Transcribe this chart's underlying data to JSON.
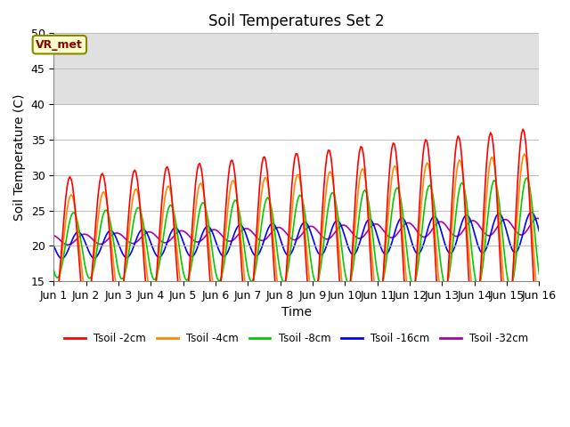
{
  "title": "Soil Temperatures Set 2",
  "xlabel": "Time",
  "ylabel": "Soil Temperature (C)",
  "ylim": [
    15,
    50
  ],
  "xlim": [
    0,
    15
  ],
  "xtick_labels": [
    "Jun 1",
    "Jun 2",
    "Jun 3",
    "Jun 4",
    "Jun 5",
    "Jun 6",
    "Jun 7",
    "Jun 8",
    "Jun 9",
    "Jun 10",
    "Jun 11",
    "Jun 12",
    "Jun 13",
    "Jun 14",
    "Jun 15",
    "Jun 16"
  ],
  "xtick_positions": [
    0,
    1,
    2,
    3,
    4,
    5,
    6,
    7,
    8,
    9,
    10,
    11,
    12,
    13,
    14,
    15
  ],
  "ytick_positions": [
    15,
    20,
    25,
    30,
    35,
    40,
    45,
    50
  ],
  "series_colors": [
    "#ff0000",
    "#ff8800",
    "#00cc00",
    "#0000ff",
    "#aa00aa"
  ],
  "series_labels": [
    "Tsoil -2cm",
    "Tsoil -4cm",
    "Tsoil -8cm",
    "Tsoil -16cm",
    "Tsoil -32cm"
  ],
  "annotation_text": "VR_met",
  "background_shade_ymin": 40,
  "background_shade_ymax": 50,
  "title_fontsize": 12,
  "axis_label_fontsize": 10,
  "tick_label_fontsize": 9,
  "linewidth": 1.2
}
